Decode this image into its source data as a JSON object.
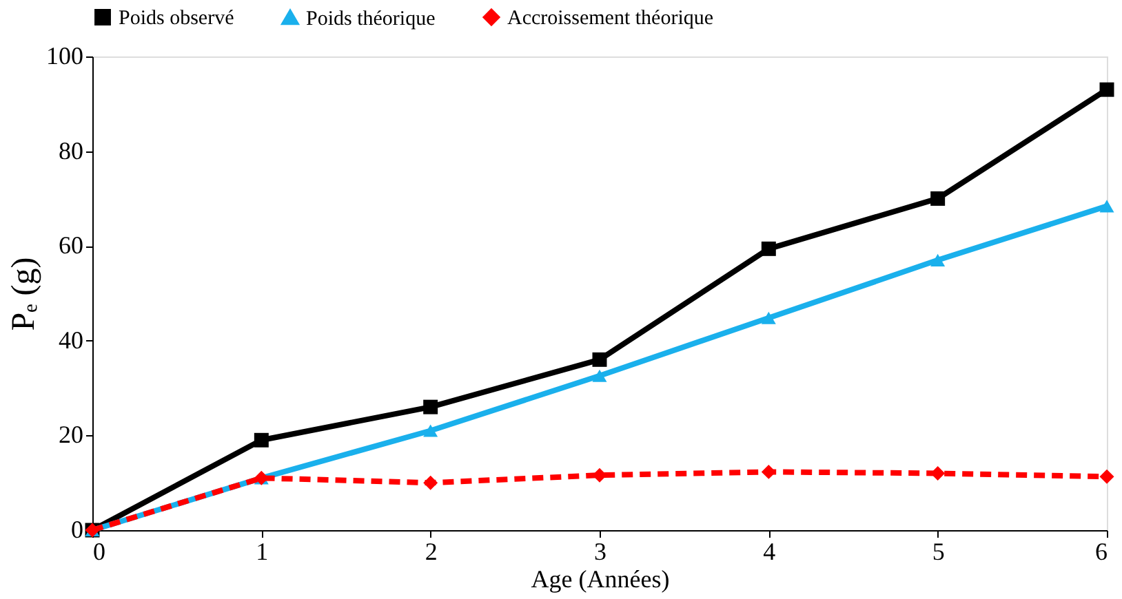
{
  "chart_data": {
    "type": "line",
    "xlabel": "Age (Années)",
    "ylabel": "Pₑ (g)",
    "x": [
      0,
      1,
      2,
      3,
      4,
      5,
      6
    ],
    "series": [
      {
        "name": "Poids observé",
        "color": "#000000",
        "marker": "square",
        "line_style": "solid",
        "values": [
          0,
          19,
          26,
          36,
          59.4,
          70,
          93
        ]
      },
      {
        "name": "Poids théorique",
        "color": "#1ab0ec",
        "marker": "triangle",
        "line_style": "solid",
        "values": [
          0,
          11,
          21,
          32.6,
          44.8,
          57,
          68.4
        ]
      },
      {
        "name": "Accroissement théorique",
        "color": "#ff0000",
        "marker": "diamond",
        "line_style": "dashed",
        "values": [
          0,
          11,
          10,
          11.6,
          12.3,
          12,
          11.3
        ]
      }
    ],
    "xlim": [
      0,
      6
    ],
    "xticks": [
      0,
      1,
      2,
      3,
      4,
      5,
      6
    ],
    "ylim": [
      0,
      100
    ],
    "yticks": [
      0,
      20,
      40,
      60,
      80,
      100
    ],
    "grid": false,
    "legend": "top"
  }
}
